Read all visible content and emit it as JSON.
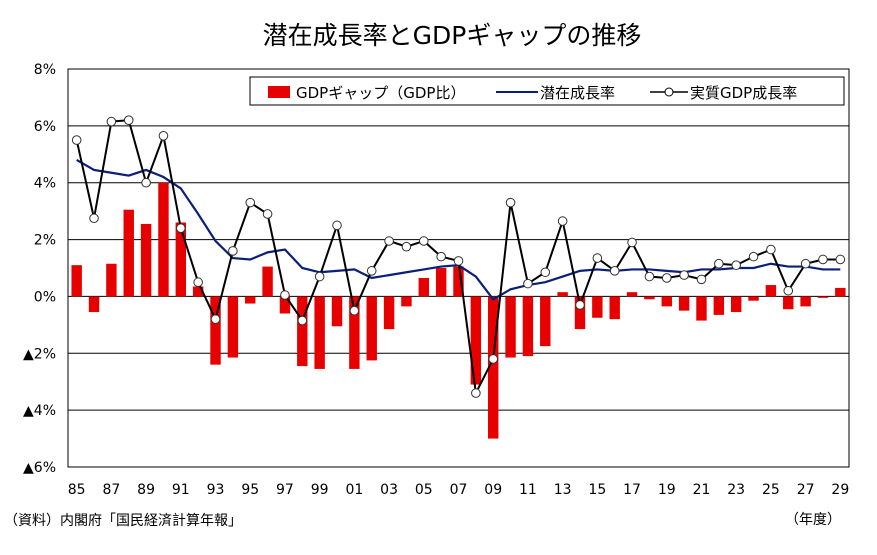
{
  "chart_data": {
    "type": "bar",
    "title": "潜在成長率とGDPギャップの推移",
    "source": "（資料）内閣府「国民経済計算年報」",
    "xunit": "（年度）",
    "ylim": [
      -6,
      8
    ],
    "yticks": [
      {
        "value": 8,
        "label": "8%"
      },
      {
        "value": 6,
        "label": "6%"
      },
      {
        "value": 4,
        "label": "4%"
      },
      {
        "value": 2,
        "label": "2%"
      },
      {
        "value": 0,
        "label": "0%"
      },
      {
        "value": -2,
        "label": "▲2%"
      },
      {
        "value": -4,
        "label": "▲4%"
      },
      {
        "value": -6,
        "label": "▲6%"
      }
    ],
    "grid": true,
    "legend_position": "top-right",
    "categories": [
      "85",
      "86",
      "87",
      "88",
      "89",
      "90",
      "91",
      "92",
      "93",
      "94",
      "95",
      "96",
      "97",
      "98",
      "99",
      "00",
      "01",
      "02",
      "03",
      "04",
      "05",
      "06",
      "07",
      "08",
      "09",
      "10",
      "11",
      "12",
      "13",
      "14",
      "15",
      "16",
      "17",
      "18",
      "19",
      "20",
      "21",
      "22",
      "23",
      "24",
      "25",
      "26",
      "27",
      "28",
      "29"
    ],
    "xtick_labels": [
      "85",
      "",
      "87",
      "",
      "89",
      "",
      "91",
      "",
      "93",
      "",
      "95",
      "",
      "97",
      "",
      "99",
      "",
      "01",
      "",
      "03",
      "",
      "05",
      "",
      "07",
      "",
      "09",
      "",
      "11",
      "",
      "13",
      "",
      "15",
      "",
      "17",
      "",
      "19",
      "",
      "21",
      "",
      "23",
      "",
      "25",
      "",
      "27",
      "",
      "29"
    ],
    "series": [
      {
        "name": "GDPギャップ（GDP比）",
        "kind": "bar",
        "color": "#e60000",
        "values": [
          1.1,
          -0.55,
          1.15,
          3.05,
          2.55,
          4.0,
          2.6,
          0.35,
          -2.4,
          -2.15,
          -0.25,
          1.05,
          -0.6,
          -2.45,
          -2.55,
          -1.05,
          -2.55,
          -2.25,
          -1.15,
          -0.35,
          0.65,
          1.0,
          1.05,
          -3.1,
          -5.0,
          -2.15,
          -2.1,
          -1.75,
          0.15,
          -1.15,
          -0.75,
          -0.8,
          0.15,
          -0.1,
          -0.35,
          -0.5,
          -0.85,
          -0.65,
          -0.55,
          -0.15,
          0.4,
          -0.45,
          -0.35,
          -0.05,
          0.3
        ]
      },
      {
        "name": "潜在成長率",
        "kind": "line",
        "color": "#0a1f7a",
        "values": [
          4.8,
          4.45,
          4.35,
          4.25,
          4.45,
          4.2,
          3.8,
          2.9,
          1.95,
          1.35,
          1.3,
          1.55,
          1.65,
          1.0,
          0.85,
          0.9,
          0.95,
          0.65,
          0.75,
          0.85,
          0.95,
          1.05,
          1.1,
          0.7,
          -0.1,
          0.25,
          0.4,
          0.5,
          0.7,
          0.9,
          0.95,
          0.9,
          0.95,
          0.95,
          0.9,
          0.85,
          0.95,
          0.95,
          1.0,
          1.0,
          1.15,
          1.05,
          1.05,
          0.95,
          0.95
        ]
      },
      {
        "name": "実質GDP成長率",
        "kind": "line-marker",
        "color": "#000000",
        "values": [
          5.5,
          2.75,
          6.15,
          6.2,
          4.0,
          5.65,
          2.4,
          0.5,
          -0.8,
          1.6,
          3.3,
          2.9,
          0.05,
          -0.85,
          0.7,
          2.5,
          -0.5,
          0.9,
          1.95,
          1.75,
          1.95,
          1.4,
          1.25,
          -3.4,
          -2.2,
          3.3,
          0.45,
          0.85,
          2.65,
          -0.3,
          1.35,
          0.9,
          1.9,
          0.7,
          0.65,
          0.75,
          0.6,
          1.15,
          1.1,
          1.4,
          1.65,
          0.2,
          1.15,
          1.3,
          1.3
        ]
      }
    ]
  }
}
